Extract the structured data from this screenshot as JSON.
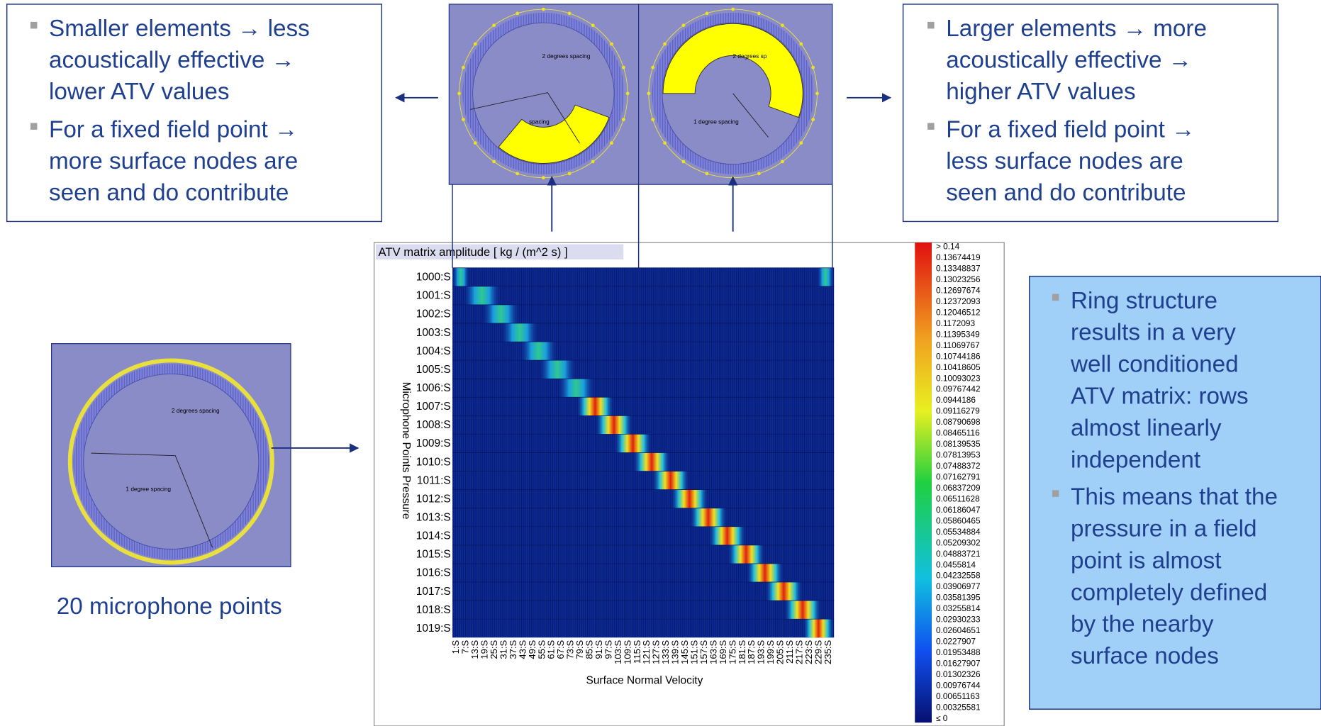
{
  "left_box": {
    "bullets": [
      {
        "lines": [
          "Smaller elements → less",
          "acoustically effective →",
          "lower ATV values"
        ]
      },
      {
        "lines": [
          "For a fixed field point →",
          "more surface nodes are",
          "seen and do contribute"
        ]
      }
    ]
  },
  "right_box": {
    "bullets": [
      {
        "lines": [
          "Larger elements → more",
          "acoustically effective →",
          "higher ATV values"
        ]
      },
      {
        "lines": [
          "For a fixed field point →",
          "less surface nodes are",
          "seen and do contribute"
        ]
      }
    ]
  },
  "info_box": {
    "bullets": [
      {
        "lines": [
          "Ring structure",
          "results in a very",
          "well conditioned",
          "ATV matrix: rows",
          "almost linearly",
          "independent"
        ]
      },
      {
        "lines": [
          "This means that the",
          "pressure in a field",
          "point is almost",
          "completely defined",
          "by the nearby",
          "surface nodes"
        ]
      }
    ]
  },
  "ring_images": {
    "left": {
      "label_outer": "2 degrees spacing",
      "label_inner": "spacing"
    },
    "right": {
      "label_outer": "2 degrees sp",
      "label_inner": "1 degree spacing"
    }
  },
  "microphone_image": {
    "label_outer": "2 degrees spacing",
    "label_inner": "1 degree spacing",
    "caption": "20 microphone points"
  },
  "heatmap": {
    "title": "ATV matrix amplitude [ kg / (m^2 s) ]",
    "y_label": "Microphone Points Pressure",
    "x_label": "Surface Normal Velocity",
    "rows": [
      "1000:S",
      "1001:S",
      "1002:S",
      "1003:S",
      "1004:S",
      "1005:S",
      "1006:S",
      "1007:S",
      "1008:S",
      "1009:S",
      "1010:S",
      "1011:S",
      "1012:S",
      "1013:S",
      "1014:S",
      "1015:S",
      "1016:S",
      "1017:S",
      "1018:S",
      "1019:S"
    ],
    "columns": [
      "1:S",
      "7:S",
      "13:S",
      "19:S",
      "25:S",
      "31:S",
      "37:S",
      "43:S",
      "49:S",
      "55:S",
      "61:S",
      "67:S",
      "73:S",
      "79:S",
      "85:S",
      "91:S",
      "97:S",
      "103:S",
      "109:S",
      "115:S",
      "121:S",
      "127:S",
      "133:S",
      "139:S",
      "145:S",
      "151:S",
      "157:S",
      "163:S",
      "169:S",
      "175:S",
      "181:S",
      "187:S",
      "193:S",
      "199:S",
      "205:S",
      "211:S",
      "217:S",
      "223:S",
      "229:S",
      "235:S"
    ],
    "colorbar_labels": [
      "> 0.14",
      "0.13674419",
      "0.13348837",
      "0.13023256",
      "0.12697674",
      "0.12372093",
      "0.12046512",
      "0.1172093",
      "0.11395349",
      "0.11069767",
      "0.10744186",
      "0.10418605",
      "0.10093023",
      "0.09767442",
      "0.0944186",
      "0.09116279",
      "0.08790698",
      "0.08465116",
      "0.08139535",
      "0.07813953",
      "0.07488372",
      "0.07162791",
      "0.06837209",
      "0.06511628",
      "0.06186047",
      "0.05860465",
      "0.05534884",
      "0.05209302",
      "0.04883721",
      "0.0455814",
      "0.04232558",
      "0.03906977",
      "0.03581395",
      "0.03255814",
      "0.02930233",
      "0.02604651",
      "0.0227907",
      "0.01953488",
      "0.01627907",
      "0.01302326",
      "0.00976744",
      "0.00651163",
      "0.00325581",
      "≤ 0"
    ]
  }
}
